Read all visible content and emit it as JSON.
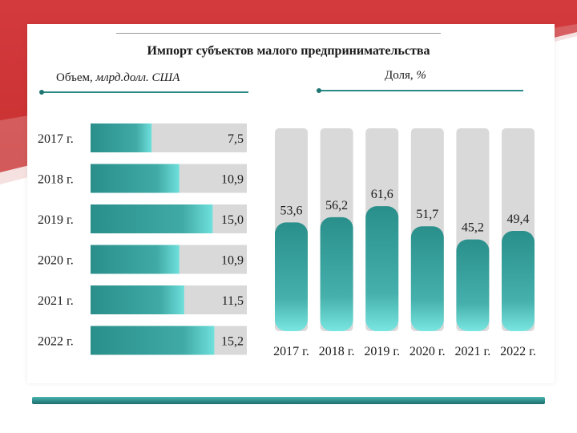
{
  "title": "Импорт субъектов малого предпринимательства",
  "colors": {
    "accent_red": "#d33a3e",
    "bar_teal_dark": "#2a8f8b",
    "bar_teal_light": "#6fe0dc",
    "track_gray": "#d9d9d9",
    "rule_teal": "#2a8a86"
  },
  "chart_data": [
    {
      "type": "bar",
      "orientation": "horizontal",
      "label_prefix": "Объем, ",
      "label_italic": "млрд.долл. США",
      "categories": [
        "2017 г.",
        "2018 г.",
        "2019 г.",
        "2020 г.",
        "2021 г.",
        "2022 г."
      ],
      "values": [
        7.5,
        10.9,
        15.0,
        10.9,
        11.5,
        15.2
      ],
      "value_labels": [
        "7,5",
        "10,9",
        "15,0",
        "10,9",
        "11,5",
        "15,2"
      ],
      "xlim": [
        0,
        19.2
      ],
      "grid": false
    },
    {
      "type": "bar",
      "orientation": "vertical",
      "label_prefix": "Доля, ",
      "label_italic": "%",
      "categories": [
        "2017 г.",
        "2018 г.",
        "2019 г.",
        "2020 г.",
        "2021 г.",
        "2022 г."
      ],
      "values": [
        53.6,
        56.2,
        61.6,
        51.7,
        45.2,
        49.4
      ],
      "value_labels": [
        "53,6",
        "56,2",
        "61,6",
        "51,7",
        "45,2",
        "49,4"
      ],
      "ylim": [
        0,
        100
      ],
      "grid": false
    }
  ]
}
